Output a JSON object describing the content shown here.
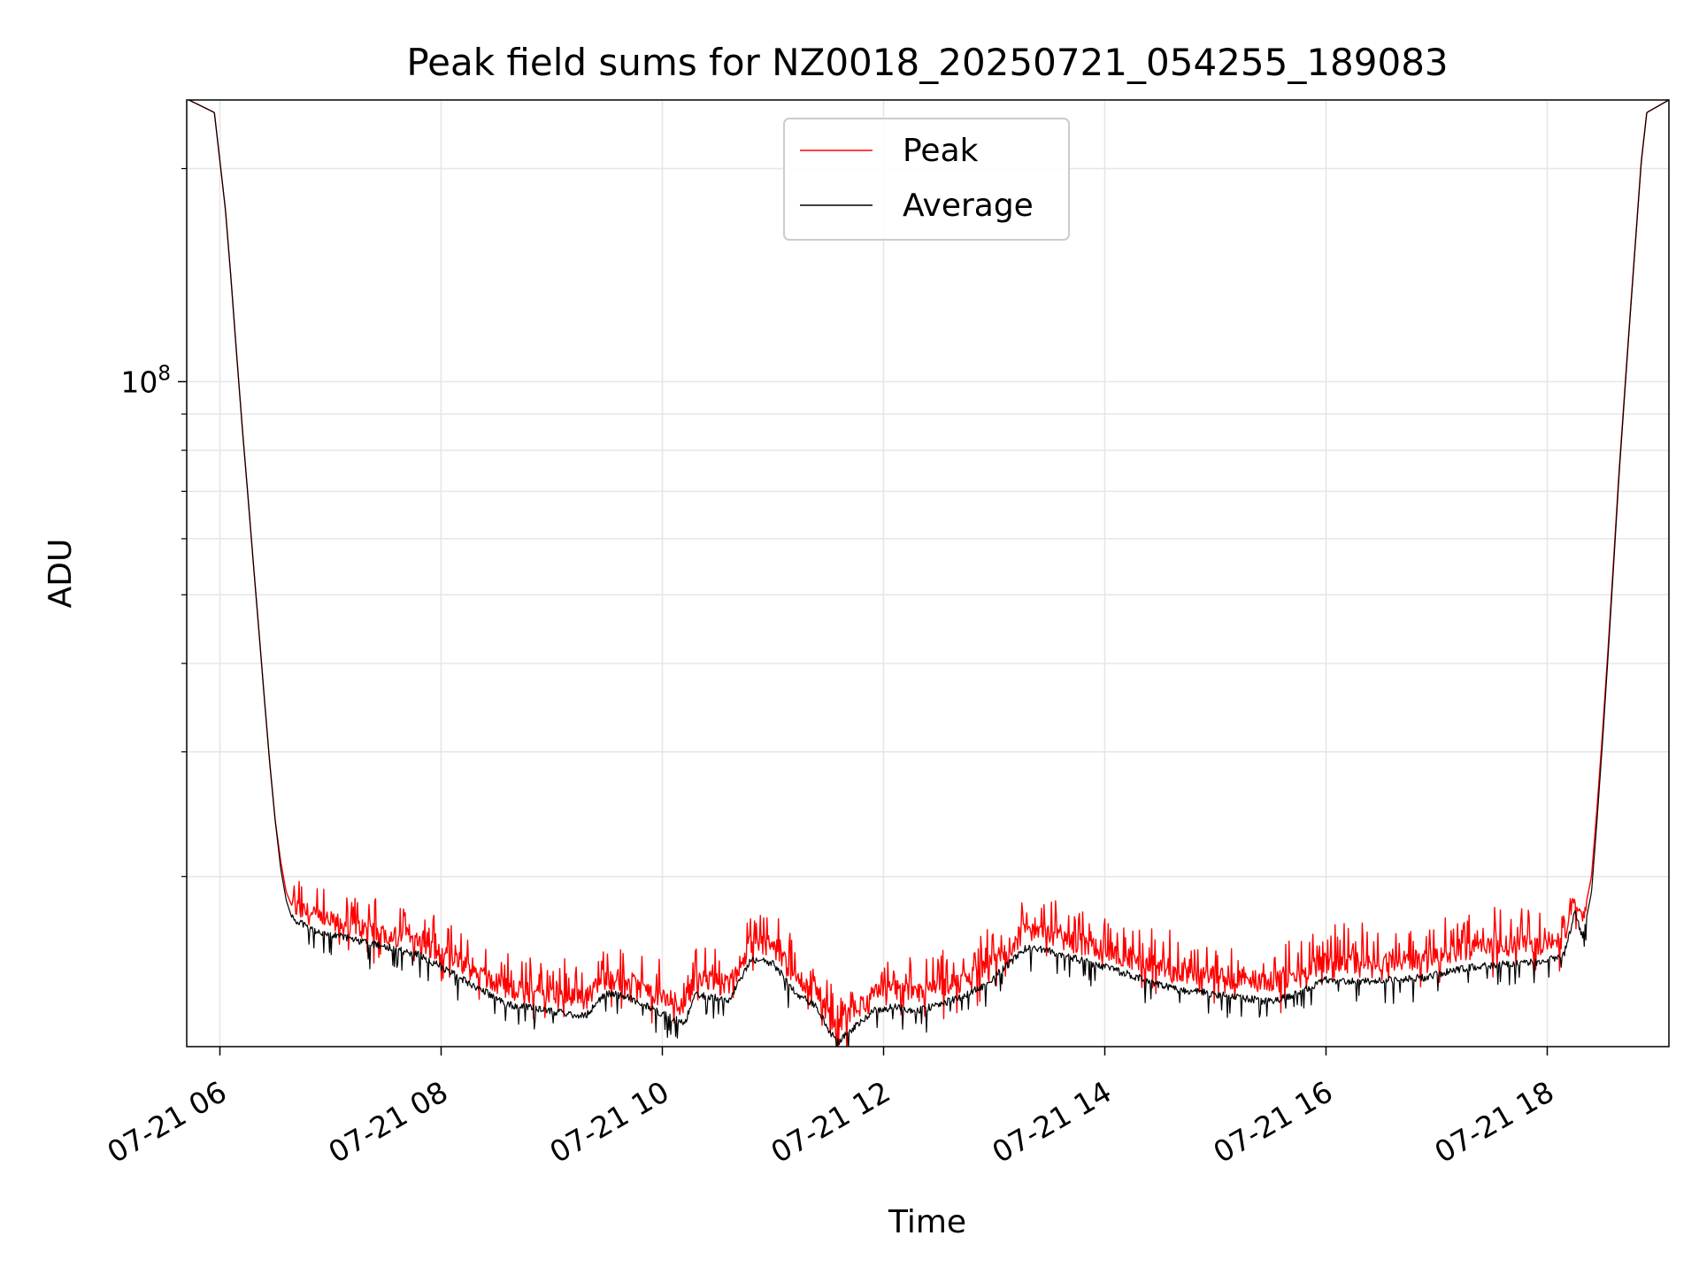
{
  "chart_data": {
    "type": "line",
    "title": "Peak field sums for NZ0018_20250721_054255_189083",
    "xlabel": "Time",
    "ylabel": "ADU",
    "x_unit": "hour of day (2025-07-21)",
    "xlim": [
      5.7,
      19.1
    ],
    "ylim": [
      11500000,
      250000000
    ],
    "yscale": "log",
    "grid": true,
    "legend_position": "upper center",
    "x_ticks": [
      {
        "value": 6,
        "label": "07-21 06"
      },
      {
        "value": 8,
        "label": "07-21 08"
      },
      {
        "value": 10,
        "label": "07-21 10"
      },
      {
        "value": 12,
        "label": "07-21 12"
      },
      {
        "value": 14,
        "label": "07-21 14"
      },
      {
        "value": 16,
        "label": "07-21 16"
      },
      {
        "value": 18,
        "label": "07-21 18"
      }
    ],
    "y_major_ticks": [
      {
        "value": 100000000,
        "base": "10",
        "exponent": "8"
      }
    ],
    "y_minor_ticks": [
      20000000,
      30000000,
      40000000,
      50000000,
      60000000,
      70000000,
      80000000,
      90000000,
      200000000
    ],
    "series": [
      {
        "name": "Peak",
        "color": "#ff0000",
        "points": [
          [
            5.72,
            250000000
          ],
          [
            5.95,
            240000000
          ],
          [
            6.0,
            205000000
          ],
          [
            6.05,
            175000000
          ],
          [
            6.1,
            140000000
          ],
          [
            6.15,
            110000000
          ],
          [
            6.2,
            87000000
          ],
          [
            6.25,
            70000000
          ],
          [
            6.3,
            56000000
          ],
          [
            6.35,
            45000000
          ],
          [
            6.4,
            36000000
          ],
          [
            6.45,
            29000000
          ],
          [
            6.5,
            24000000
          ],
          [
            6.55,
            21000000
          ],
          [
            6.6,
            19000000
          ],
          [
            6.65,
            18200000
          ],
          [
            6.75,
            17900000
          ],
          [
            6.9,
            17400000
          ],
          [
            7.2,
            17000000
          ],
          [
            7.5,
            16600000
          ],
          [
            7.8,
            16100000
          ],
          [
            8.0,
            15500000
          ],
          [
            8.3,
            14700000
          ],
          [
            8.6,
            13900000
          ],
          [
            9.0,
            13500000
          ],
          [
            9.3,
            13400000
          ],
          [
            9.5,
            14400000
          ],
          [
            9.7,
            14200000
          ],
          [
            9.9,
            13700000
          ],
          [
            10.1,
            13300000
          ],
          [
            10.2,
            13200000
          ],
          [
            10.3,
            14300000
          ],
          [
            10.5,
            14200000
          ],
          [
            10.6,
            14000000
          ],
          [
            10.8,
            16100000
          ],
          [
            11.0,
            15900000
          ],
          [
            11.2,
            14400000
          ],
          [
            11.4,
            13800000
          ],
          [
            11.5,
            12700000
          ],
          [
            11.6,
            12400000
          ],
          [
            11.7,
            12800000
          ],
          [
            11.9,
            13600000
          ],
          [
            12.1,
            13800000
          ],
          [
            12.3,
            13600000
          ],
          [
            12.5,
            13900000
          ],
          [
            12.7,
            14200000
          ],
          [
            12.9,
            14700000
          ],
          [
            13.1,
            15700000
          ],
          [
            13.3,
            16800000
          ],
          [
            13.5,
            16500000
          ],
          [
            13.8,
            16000000
          ],
          [
            14.0,
            15700000
          ],
          [
            14.3,
            15200000
          ],
          [
            14.6,
            14700000
          ],
          [
            14.9,
            14500000
          ],
          [
            15.2,
            14300000
          ],
          [
            15.5,
            14100000
          ],
          [
            15.7,
            14400000
          ],
          [
            16.0,
            15200000
          ],
          [
            16.3,
            15100000
          ],
          [
            16.6,
            15200000
          ],
          [
            16.9,
            15300000
          ],
          [
            17.2,
            15700000
          ],
          [
            17.5,
            15900000
          ],
          [
            17.8,
            16000000
          ],
          [
            18.0,
            16100000
          ],
          [
            18.15,
            16400000
          ],
          [
            18.25,
            18800000
          ],
          [
            18.32,
            17300000
          ],
          [
            18.4,
            20000000
          ],
          [
            18.45,
            25000000
          ],
          [
            18.5,
            32000000
          ],
          [
            18.55,
            42000000
          ],
          [
            18.6,
            56000000
          ],
          [
            18.65,
            75000000
          ],
          [
            18.7,
            97000000
          ],
          [
            18.75,
            125000000
          ],
          [
            18.8,
            160000000
          ],
          [
            18.85,
            205000000
          ],
          [
            18.9,
            240000000
          ],
          [
            19.1,
            250000000
          ]
        ]
      },
      {
        "name": "Average",
        "color": "#000000",
        "points": [
          [
            5.72,
            250000000
          ],
          [
            5.95,
            240000000
          ],
          [
            6.0,
            205000000
          ],
          [
            6.05,
            175000000
          ],
          [
            6.1,
            140000000
          ],
          [
            6.15,
            110000000
          ],
          [
            6.2,
            87000000
          ],
          [
            6.25,
            70000000
          ],
          [
            6.3,
            56000000
          ],
          [
            6.35,
            45000000
          ],
          [
            6.4,
            36000000
          ],
          [
            6.45,
            29000000
          ],
          [
            6.5,
            24000000
          ],
          [
            6.55,
            20500000
          ],
          [
            6.6,
            18500000
          ],
          [
            6.65,
            17500000
          ],
          [
            6.75,
            17100000
          ],
          [
            6.9,
            16700000
          ],
          [
            7.2,
            16300000
          ],
          [
            7.5,
            15900000
          ],
          [
            7.8,
            15500000
          ],
          [
            8.0,
            14900000
          ],
          [
            8.3,
            14000000
          ],
          [
            8.6,
            13200000
          ],
          [
            9.0,
            12900000
          ],
          [
            9.3,
            12700000
          ],
          [
            9.5,
            13700000
          ],
          [
            9.7,
            13500000
          ],
          [
            9.9,
            13000000
          ],
          [
            10.1,
            12600000
          ],
          [
            10.2,
            12400000
          ],
          [
            10.3,
            13600000
          ],
          [
            10.5,
            13500000
          ],
          [
            10.6,
            13300000
          ],
          [
            10.8,
            15300000
          ],
          [
            11.0,
            15100000
          ],
          [
            11.2,
            13700000
          ],
          [
            11.4,
            13100000
          ],
          [
            11.5,
            12100000
          ],
          [
            11.6,
            11700000
          ],
          [
            11.7,
            12100000
          ],
          [
            11.9,
            12900000
          ],
          [
            12.1,
            13100000
          ],
          [
            12.3,
            12900000
          ],
          [
            12.5,
            13200000
          ],
          [
            12.7,
            13500000
          ],
          [
            12.9,
            14000000
          ],
          [
            13.1,
            14900000
          ],
          [
            13.3,
            15900000
          ],
          [
            13.5,
            15700000
          ],
          [
            13.8,
            15200000
          ],
          [
            14.0,
            14900000
          ],
          [
            14.3,
            14400000
          ],
          [
            14.6,
            13900000
          ],
          [
            14.9,
            13700000
          ],
          [
            15.2,
            13500000
          ],
          [
            15.5,
            13300000
          ],
          [
            15.7,
            13600000
          ],
          [
            16.0,
            14300000
          ],
          [
            16.3,
            14200000
          ],
          [
            16.6,
            14300000
          ],
          [
            16.9,
            14400000
          ],
          [
            17.2,
            14800000
          ],
          [
            17.5,
            15000000
          ],
          [
            17.8,
            15100000
          ],
          [
            18.0,
            15200000
          ],
          [
            18.15,
            15500000
          ],
          [
            18.25,
            17800000
          ],
          [
            18.32,
            16400000
          ],
          [
            18.4,
            19000000
          ],
          [
            18.45,
            24000000
          ],
          [
            18.5,
            31000000
          ],
          [
            18.55,
            41000000
          ],
          [
            18.6,
            55000000
          ],
          [
            18.65,
            74000000
          ],
          [
            18.7,
            96000000
          ],
          [
            18.75,
            124000000
          ],
          [
            18.8,
            159000000
          ],
          [
            18.85,
            204000000
          ],
          [
            18.9,
            240000000
          ],
          [
            19.1,
            250000000
          ]
        ]
      }
    ]
  }
}
